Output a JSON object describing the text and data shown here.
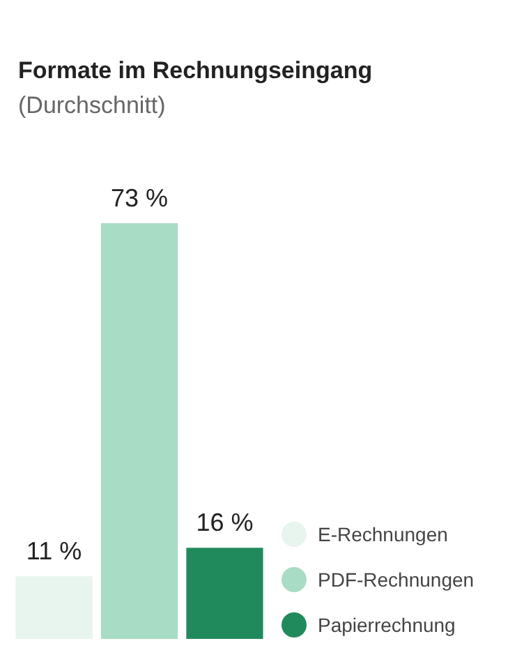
{
  "chart_data": {
    "type": "bar",
    "title": "Formate im Rechnungseingang",
    "subtitle": "(Durchschnitt)",
    "categories": [
      null,
      null,
      null
    ],
    "stacked": true,
    "series": [
      {
        "name": "E-Rechnungen",
        "color": "#e8f4ee",
        "values": [
          11,
          0,
          0
        ],
        "value_labels": [
          "11 %",
          null,
          null
        ]
      },
      {
        "name": "PDF-Rechnungen",
        "color": "#a8dcc4",
        "values": [
          0,
          73,
          0
        ],
        "value_labels": [
          null,
          "73 %",
          null
        ]
      },
      {
        "name": "Papierrechnung",
        "color": "#218a5c",
        "values": [
          0,
          0,
          16
        ],
        "value_labels": [
          null,
          null,
          "16 %"
        ]
      }
    ],
    "legend": "bottom right",
    "grid": false
  }
}
